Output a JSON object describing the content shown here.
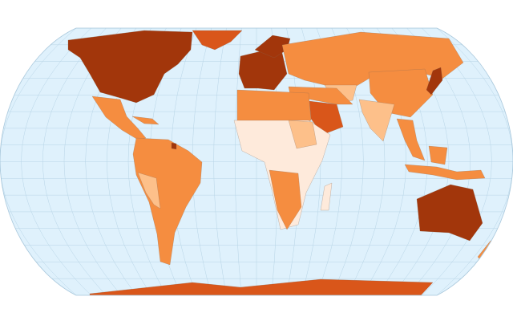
{
  "map": {
    "projection": "robinson",
    "graticule": true,
    "colors": {
      "ocean": "#dff1fc",
      "graticule": "#b7d4e6",
      "outline": "#a9c8dc",
      "darkest": "#a2360b",
      "dark": "#d9561a",
      "medium": "#f58d40",
      "light": "#fdc08a",
      "lightest": "#feeadb"
    }
  }
}
